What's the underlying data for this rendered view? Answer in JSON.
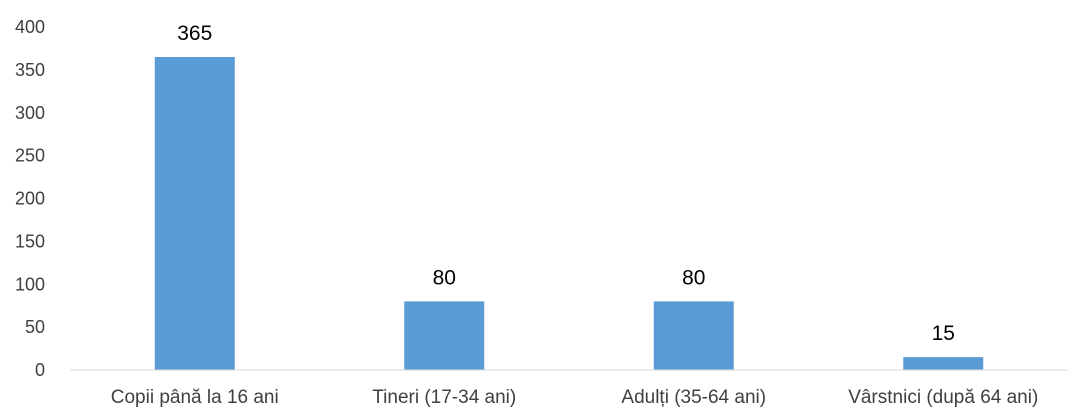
{
  "chart_data": {
    "type": "bar",
    "categories": [
      "Copii până la 16 ani",
      "Tineri (17-34 ani)",
      "Adulți (35-64 ani)",
      "Vârstnici (după 64 ani)"
    ],
    "values": [
      365,
      80,
      80,
      15
    ],
    "data_labels": [
      "365",
      "80",
      "80",
      "15"
    ],
    "title": "",
    "xlabel": "",
    "ylabel": "",
    "ylim": [
      0,
      400
    ],
    "yticks": [
      0,
      50,
      100,
      150,
      200,
      250,
      300,
      350,
      400
    ],
    "grid": false,
    "legend": "none",
    "colors": {
      "bar": "#5b9bd5",
      "axis": "#d9d9d9",
      "text": "#404040",
      "data_label": "#000000"
    }
  }
}
